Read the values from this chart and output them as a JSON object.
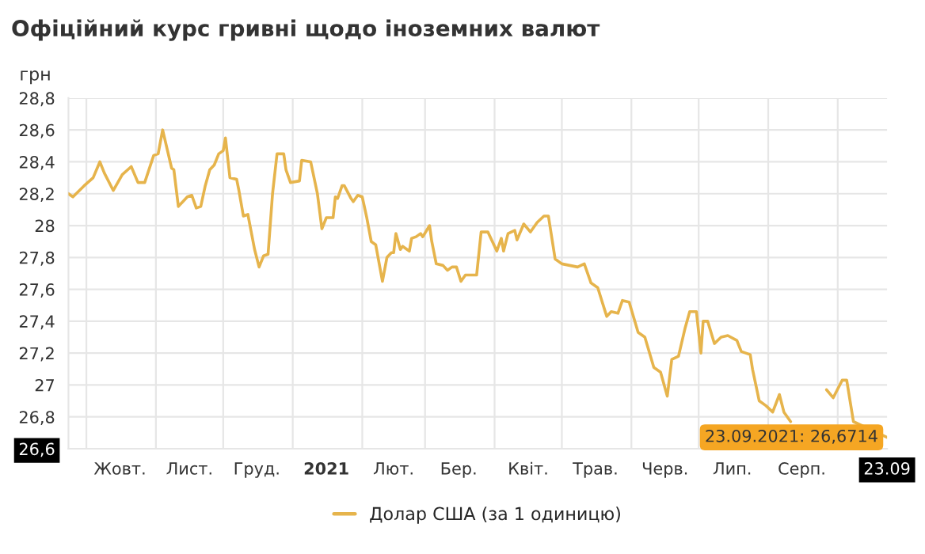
{
  "chart_data": {
    "type": "line",
    "title": "Офіційний курс гривні щодо іноземних валют",
    "ylabel": "грн",
    "xlim": [
      "2020-09-23",
      "2021-09-23"
    ],
    "ylim": [
      26.6,
      28.8
    ],
    "yticks": [
      {
        "value": 26.6,
        "label": "26,6"
      },
      {
        "value": 26.8,
        "label": "26,8"
      },
      {
        "value": 27,
        "label": "27"
      },
      {
        "value": 27.2,
        "label": "27,2"
      },
      {
        "value": 27.4,
        "label": "27,4"
      },
      {
        "value": 27.6,
        "label": "27,6"
      },
      {
        "value": 27.8,
        "label": "27,8"
      },
      {
        "value": 28,
        "label": "28"
      },
      {
        "value": 28.2,
        "label": "28,2"
      },
      {
        "value": 28.4,
        "label": "28,4"
      },
      {
        "value": 28.6,
        "label": "28,6"
      },
      {
        "value": 28.8,
        "label": "28,8"
      }
    ],
    "xticks": [
      {
        "value": "2020-10-01",
        "label": null
      },
      {
        "value": "2020-10-16",
        "label": "Жовт."
      },
      {
        "value": "2020-11-01",
        "label": null
      },
      {
        "value": "2020-11-16",
        "label": "Лист."
      },
      {
        "value": "2020-12-01",
        "label": null
      },
      {
        "value": "2020-12-16",
        "label": "Груд."
      },
      {
        "value": "2021-01-01",
        "label": null
      },
      {
        "value": "2021-01-16",
        "label": "2021"
      },
      {
        "value": "2021-02-01",
        "label": null
      },
      {
        "value": "2021-02-15",
        "label": "Лют."
      },
      {
        "value": "2021-03-01",
        "label": null
      },
      {
        "value": "2021-03-16",
        "label": "Бер."
      },
      {
        "value": "2021-04-01",
        "label": null
      },
      {
        "value": "2021-04-16",
        "label": "Квіт."
      },
      {
        "value": "2021-05-01",
        "label": null
      },
      {
        "value": "2021-05-16",
        "label": "Трав."
      },
      {
        "value": "2021-06-01",
        "label": null
      },
      {
        "value": "2021-06-16",
        "label": "Черв."
      },
      {
        "value": "2021-07-01",
        "label": null
      },
      {
        "value": "2021-07-16",
        "label": "Лип."
      },
      {
        "value": "2021-08-01",
        "label": null
      },
      {
        "value": "2021-08-16",
        "label": "Серп."
      },
      {
        "value": "2021-09-01",
        "label": null
      },
      {
        "value": "2021-09-23",
        "label": "23.09"
      }
    ],
    "grid": true,
    "legend": "bottom",
    "marker": "none",
    "line_style": "solid",
    "annotations": [
      {
        "text": "23.09.2021: 26,6714",
        "x": "2021-09-23",
        "y": 26.6714
      }
    ],
    "x": [
      "2020-09-23",
      "2020-09-25",
      "2020-09-30",
      "2020-10-04",
      "2020-10-07",
      "2020-10-09",
      "2020-10-13",
      "2020-10-17",
      "2020-10-21",
      "2020-10-24",
      "2020-10-27",
      "2020-10-31",
      "2020-11-02",
      "2020-11-04",
      "2020-11-08",
      "2020-11-09",
      "2020-11-11",
      "2020-11-15",
      "2020-11-17",
      "2020-11-19",
      "2020-11-21",
      "2020-11-23",
      "2020-11-25",
      "2020-11-27",
      "2020-11-29",
      "2020-12-01",
      "2020-12-02",
      "2020-12-04",
      "2020-12-07",
      "2020-12-08",
      "2020-12-10",
      "2020-12-12",
      "2020-12-15",
      "2020-12-17",
      "2020-12-19",
      "2020-12-21",
      "2020-12-23",
      "2020-12-25",
      "2020-12-28",
      "2020-12-29",
      "2020-12-31",
      "2021-01-04",
      "2021-01-05",
      "2021-01-09",
      "2021-01-12",
      "2021-01-14",
      "2021-01-16",
      "2021-01-19",
      "2021-01-20",
      "2021-01-21",
      "2021-01-23",
      "2021-01-24",
      "2021-01-27",
      "2021-01-28",
      "2021-01-30",
      "2021-02-01",
      "2021-02-03",
      "2021-02-05",
      "2021-02-07",
      "2021-02-10",
      "2021-02-12",
      "2021-02-14",
      "2021-02-15",
      "2021-02-16",
      "2021-02-18",
      "2021-02-19",
      "2021-02-22",
      "2021-02-23",
      "2021-02-25",
      "2021-02-27",
      "2021-02-28",
      "2021-03-03",
      "2021-03-04",
      "2021-03-06",
      "2021-03-09",
      "2021-03-11",
      "2021-03-13",
      "2021-03-15",
      "2021-03-17",
      "2021-03-19",
      "2021-03-24",
      "2021-03-26",
      "2021-03-29",
      "2021-04-02",
      "2021-04-04",
      "2021-04-05",
      "2021-04-07",
      "2021-04-10",
      "2021-04-11",
      "2021-04-14",
      "2021-04-17",
      "2021-04-20",
      "2021-04-23",
      "2021-04-25",
      "2021-04-28",
      "2021-05-01",
      "2021-05-08",
      "2021-05-11",
      "2021-05-14",
      "2021-05-17",
      "2021-05-21",
      "2021-05-23",
      "2021-05-26",
      "2021-05-28",
      "2021-05-31",
      "2021-06-04",
      "2021-06-07",
      "2021-06-11",
      "2021-06-14",
      "2021-06-17",
      "2021-06-19",
      "2021-06-22",
      "2021-06-25",
      "2021-06-27",
      "2021-06-30",
      "2021-07-02",
      "2021-07-03",
      "2021-07-05",
      "2021-07-08",
      "2021-07-11",
      "2021-07-14",
      "2021-07-18",
      "2021-07-20",
      "2021-07-24",
      "2021-07-25",
      "2021-07-28",
      "2021-07-31",
      "2021-08-03",
      "2021-08-06",
      "2021-08-08",
      "2021-08-11",
      "2021-08-18",
      "2021-08-27",
      "2021-08-30",
      "2021-09-03",
      "2021-09-05",
      "2021-09-08",
      "2021-09-23"
    ],
    "series": [
      {
        "name": "Долар США (за 1 одиницю)",
        "color": "#e6b44c",
        "values": [
          28.2,
          28.18,
          28.25,
          28.3,
          28.4,
          28.33,
          28.22,
          28.32,
          28.37,
          28.27,
          28.27,
          28.44,
          28.45,
          28.6,
          28.36,
          28.35,
          28.12,
          28.18,
          28.19,
          28.11,
          28.12,
          28.25,
          28.35,
          28.38,
          28.45,
          28.47,
          28.55,
          28.3,
          28.29,
          28.22,
          28.06,
          28.07,
          27.85,
          27.74,
          27.81,
          27.82,
          28.2,
          28.45,
          28.45,
          28.35,
          28.27,
          28.28,
          28.41,
          28.4,
          28.2,
          27.98,
          28.05,
          28.05,
          28.18,
          28.17,
          28.25,
          28.25,
          28.17,
          28.15,
          28.19,
          28.18,
          28.05,
          27.9,
          27.88,
          27.65,
          27.8,
          27.83,
          27.83,
          27.95,
          27.85,
          27.87,
          27.84,
          27.92,
          27.93,
          27.95,
          27.93,
          28.0,
          27.9,
          27.76,
          27.75,
          27.72,
          27.74,
          27.74,
          27.65,
          27.69,
          27.69,
          27.96,
          27.96,
          27.84,
          27.92,
          27.84,
          27.95,
          27.97,
          27.91,
          28.01,
          27.96,
          28.02,
          28.06,
          28.06,
          27.79,
          27.76,
          27.74,
          27.76,
          27.64,
          27.61,
          27.43,
          27.46,
          27.45,
          27.53,
          27.52,
          27.33,
          27.3,
          27.11,
          27.08,
          26.93,
          27.16,
          27.18,
          27.36,
          27.46,
          27.46,
          27.2,
          27.4,
          27.4,
          27.26,
          27.3,
          27.31,
          27.28,
          27.21,
          27.19,
          27.1,
          26.9,
          26.87,
          26.83,
          26.94,
          26.83,
          26.77,
          null,
          26.97,
          26.92,
          27.03,
          27.03,
          26.77,
          26.6714
        ]
      }
    ]
  }
}
